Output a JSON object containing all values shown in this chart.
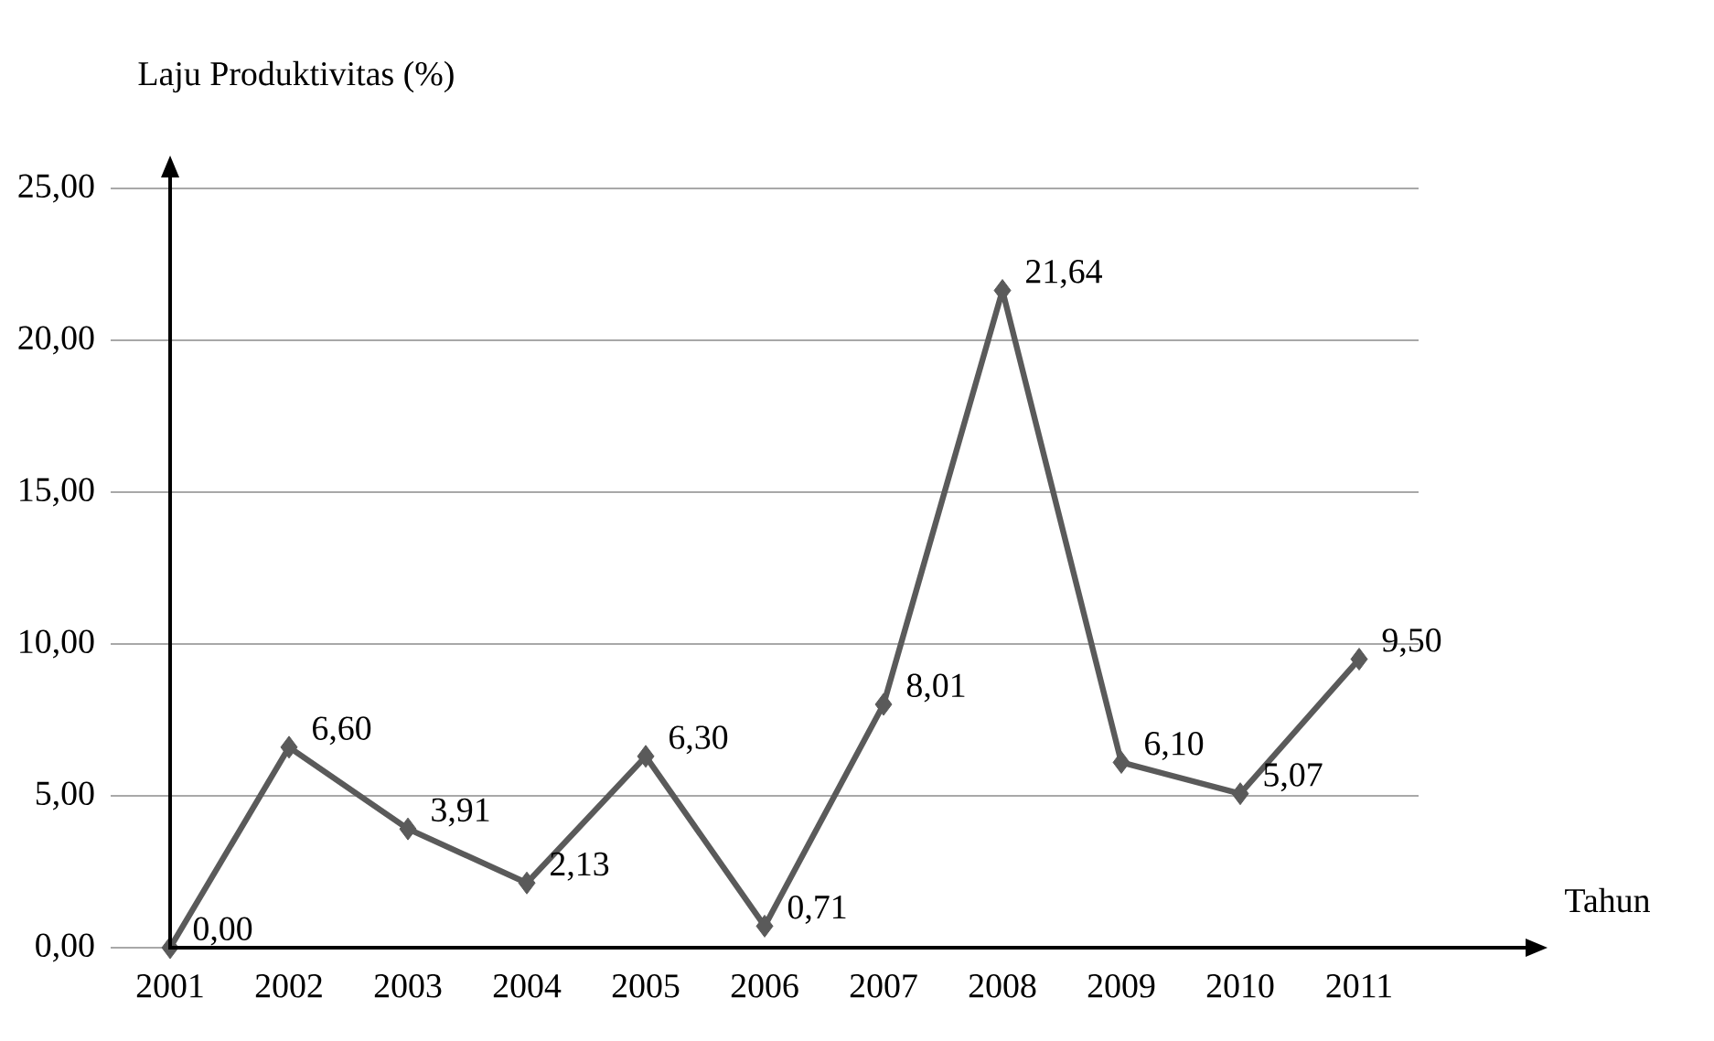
{
  "chart_data": {
    "type": "line",
    "ylabel": "Laju Produktivitas (%)",
    "xlabel": "Tahun",
    "categories": [
      "2001",
      "2002",
      "2003",
      "2004",
      "2005",
      "2006",
      "2007",
      "2008",
      "2009",
      "2010",
      "2011"
    ],
    "series": [
      {
        "color": "#5a5a5a",
        "values": [
          0.0,
          6.6,
          3.91,
          2.13,
          6.3,
          0.71,
          8.01,
          21.64,
          6.1,
          5.07,
          9.5
        ],
        "value_labels": [
          "0,00",
          "6,60",
          "3,91",
          "2,13",
          "6,30",
          "0,71",
          "8,01",
          "21,64",
          "6,10",
          "5,07",
          "9,50"
        ]
      }
    ],
    "ylim": [
      0,
      25
    ],
    "yticks": [
      {
        "value": 0,
        "label": "0,00"
      },
      {
        "value": 5,
        "label": "5,00"
      },
      {
        "value": 10,
        "label": "10,00"
      },
      {
        "value": 15,
        "label": "15,00"
      },
      {
        "value": 20,
        "label": "20,00"
      },
      {
        "value": 25,
        "label": "25,00"
      }
    ],
    "grid": "y",
    "marker": "diamond",
    "line_style": "solid"
  }
}
